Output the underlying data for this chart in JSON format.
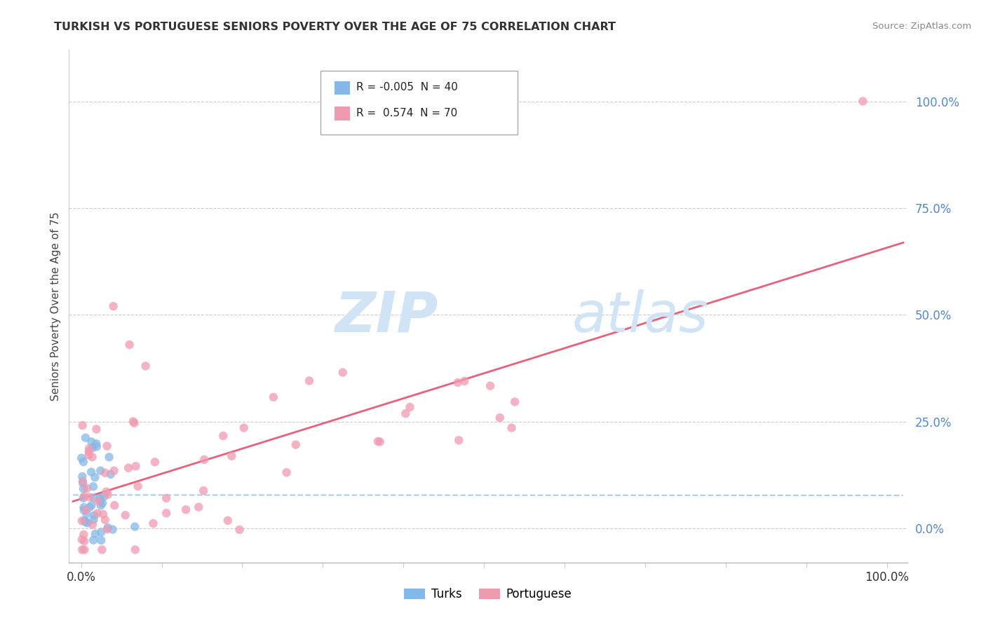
{
  "title": "TURKISH VS PORTUGUESE SENIORS POVERTY OVER THE AGE OF 75 CORRELATION CHART",
  "source": "Source: ZipAtlas.com",
  "ylabel": "Seniors Poverty Over the Age of 75",
  "legend_turks_r": "-0.005",
  "legend_turks_n": "40",
  "legend_port_r": "0.574",
  "legend_port_n": "70",
  "turks_color": "#85b8e8",
  "port_color": "#f09ab0",
  "turks_line_color": "#85b8e8",
  "port_line_color": "#e8607a",
  "ytick_values": [
    0.0,
    0.25,
    0.5,
    0.75,
    1.0
  ],
  "ytick_labels": [
    "0.0%",
    "25.0%",
    "50.0%",
    "75.0%",
    "100.0%"
  ],
  "yaxis_color": "#5588cc",
  "watermark_zip_color": "#d0e4f5",
  "watermark_atlas_color": "#d0e4f5"
}
